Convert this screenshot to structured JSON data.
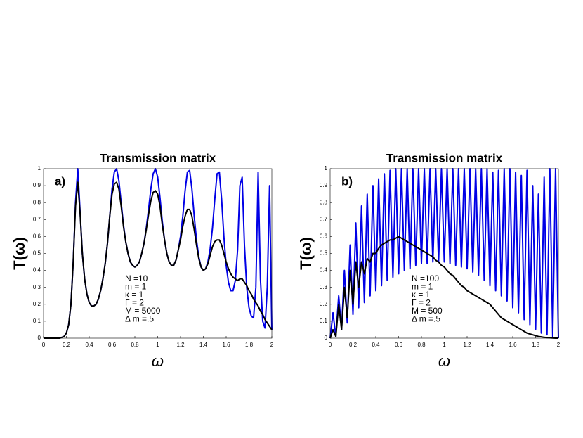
{
  "chart_data": [
    {
      "type": "line",
      "title": "Transmission matrix",
      "panel_label": "a)",
      "xlabel": "ω",
      "ylabel": "T(ω)",
      "annotations": [
        "N =10",
        "m = 1",
        "κ = 1",
        "Γ = 2",
        "M = 5000",
        "Δ m =.5"
      ],
      "x": [
        0,
        0.02,
        0.04,
        0.06,
        0.08,
        0.1,
        0.12,
        0.14,
        0.16,
        0.18,
        0.2,
        0.22,
        0.24,
        0.26,
        0.28,
        0.3,
        0.32,
        0.34,
        0.36,
        0.38,
        0.4,
        0.42,
        0.44,
        0.46,
        0.48,
        0.5,
        0.52,
        0.54,
        0.56,
        0.58,
        0.6,
        0.62,
        0.64,
        0.66,
        0.68,
        0.7,
        0.72,
        0.74,
        0.76,
        0.78,
        0.8,
        0.82,
        0.84,
        0.86,
        0.88,
        0.9,
        0.92,
        0.94,
        0.96,
        0.98,
        1,
        1.02,
        1.04,
        1.06,
        1.08,
        1.1,
        1.12,
        1.14,
        1.16,
        1.18,
        1.2,
        1.22,
        1.24,
        1.26,
        1.28,
        1.3,
        1.32,
        1.34,
        1.36,
        1.38,
        1.4,
        1.42,
        1.44,
        1.46,
        1.48,
        1.5,
        1.52,
        1.54,
        1.56,
        1.58,
        1.6,
        1.62,
        1.64,
        1.66,
        1.68,
        1.7,
        1.72,
        1.74,
        1.76,
        1.78,
        1.8,
        1.82,
        1.84,
        1.86,
        1.88,
        1.9,
        1.92,
        1.94,
        1.96,
        1.98,
        2
      ],
      "series": [
        {
          "color": "#0000e6",
          "values": [
            0,
            0,
            0,
            0,
            0,
            0,
            0,
            0,
            0.005,
            0.01,
            0.03,
            0.08,
            0.2,
            0.45,
            0.8,
            1,
            0.75,
            0.5,
            0.35,
            0.26,
            0.21,
            0.19,
            0.19,
            0.2,
            0.23,
            0.28,
            0.35,
            0.44,
            0.56,
            0.72,
            0.88,
            0.98,
            1,
            0.93,
            0.8,
            0.67,
            0.57,
            0.5,
            0.45,
            0.43,
            0.42,
            0.43,
            0.45,
            0.5,
            0.56,
            0.65,
            0.76,
            0.88,
            0.97,
            1,
            0.95,
            0.83,
            0.69,
            0.58,
            0.5,
            0.45,
            0.43,
            0.43,
            0.46,
            0.52,
            0.6,
            0.72,
            0.87,
            0.98,
            0.99,
            0.88,
            0.72,
            0.58,
            0.48,
            0.42,
            0.4,
            0.41,
            0.45,
            0.53,
            0.65,
            0.82,
            0.97,
            0.98,
            0.82,
            0.6,
            0.43,
            0.33,
            0.28,
            0.28,
            0.34,
            0.52,
            0.9,
            0.95,
            0.55,
            0.3,
            0.18,
            0.13,
            0.12,
            0.3,
            0.98,
            0.35,
            0.1,
            0.06,
            0.3,
            0.9,
            0.05
          ]
        },
        {
          "color": "#000000",
          "values": [
            0,
            0,
            0,
            0,
            0,
            0,
            0,
            0,
            0.005,
            0.01,
            0.03,
            0.08,
            0.2,
            0.45,
            0.78,
            0.92,
            0.74,
            0.5,
            0.35,
            0.26,
            0.21,
            0.19,
            0.19,
            0.2,
            0.23,
            0.28,
            0.35,
            0.44,
            0.56,
            0.72,
            0.85,
            0.91,
            0.92,
            0.88,
            0.78,
            0.66,
            0.57,
            0.5,
            0.45,
            0.43,
            0.42,
            0.43,
            0.45,
            0.5,
            0.56,
            0.64,
            0.73,
            0.81,
            0.86,
            0.87,
            0.85,
            0.78,
            0.67,
            0.58,
            0.5,
            0.45,
            0.43,
            0.43,
            0.46,
            0.52,
            0.58,
            0.66,
            0.72,
            0.76,
            0.76,
            0.72,
            0.64,
            0.55,
            0.47,
            0.42,
            0.4,
            0.41,
            0.44,
            0.49,
            0.54,
            0.57,
            0.58,
            0.58,
            0.55,
            0.5,
            0.45,
            0.41,
            0.38,
            0.36,
            0.35,
            0.34,
            0.35,
            0.35,
            0.33,
            0.31,
            0.28,
            0.26,
            0.23,
            0.21,
            0.19,
            0.16,
            0.14,
            0.11,
            0.09,
            0.07,
            0.05
          ]
        }
      ],
      "xlim": [
        0,
        2
      ],
      "ylim": [
        0,
        1
      ],
      "xticks": [
        0,
        0.2,
        0.4,
        0.6,
        0.8,
        1,
        1.2,
        1.4,
        1.6,
        1.8,
        2
      ],
      "yticks": [
        0,
        0.1,
        0.2,
        0.3,
        0.4,
        0.5,
        0.6,
        0.7,
        0.8,
        0.9,
        1
      ]
    },
    {
      "type": "line",
      "title": "Transmission matrix",
      "panel_label": "b)",
      "xlabel": "ω",
      "ylabel": "T(ω)",
      "annotations": [
        "N =100",
        "m = 1",
        "κ = 1",
        "Γ = 2",
        "M = 500",
        "Δ m =.5"
      ],
      "x": [
        0,
        0.025,
        0.05,
        0.075,
        0.1,
        0.125,
        0.15,
        0.175,
        0.2,
        0.225,
        0.25,
        0.275,
        0.3,
        0.325,
        0.35,
        0.375,
        0.4,
        0.425,
        0.45,
        0.475,
        0.5,
        0.525,
        0.55,
        0.575,
        0.6,
        0.625,
        0.65,
        0.675,
        0.7,
        0.725,
        0.75,
        0.775,
        0.8,
        0.825,
        0.85,
        0.875,
        0.9,
        0.925,
        0.95,
        0.975,
        1,
        1.025,
        1.05,
        1.075,
        1.1,
        1.125,
        1.15,
        1.175,
        1.2,
        1.225,
        1.25,
        1.275,
        1.3,
        1.325,
        1.35,
        1.375,
        1.4,
        1.425,
        1.45,
        1.475,
        1.5,
        1.525,
        1.55,
        1.575,
        1.6,
        1.625,
        1.65,
        1.675,
        1.7,
        1.725,
        1.75,
        1.775,
        1.8,
        1.825,
        1.85,
        1.875,
        1.9,
        1.925,
        1.95,
        1.975,
        2
      ],
      "series": [
        {
          "color": "#0000e6",
          "values": [
            0,
            0.15,
            0.01,
            0.25,
            0.05,
            0.4,
            0.09,
            0.55,
            0.14,
            0.68,
            0.18,
            0.78,
            0.21,
            0.85,
            0.25,
            0.9,
            0.28,
            0.94,
            0.31,
            0.97,
            0.34,
            0.99,
            0.36,
            1,
            0.38,
            1,
            0.4,
            1,
            0.41,
            1,
            0.43,
            1,
            0.44,
            1,
            0.44,
            1,
            0.45,
            1,
            0.45,
            1,
            0.45,
            1,
            0.44,
            1,
            0.43,
            1,
            0.42,
            1,
            0.41,
            1,
            0.39,
            1,
            0.37,
            1,
            0.34,
            1,
            0.31,
            0.98,
            0.28,
            0.99,
            0.25,
            1,
            0.22,
            1,
            0.18,
            0.98,
            0.15,
            0.96,
            0.11,
            0.99,
            0.08,
            0.9,
            0.05,
            0.85,
            0.03,
            0.95,
            0.02,
            1,
            0.01,
            1,
            0
          ]
        },
        {
          "color": "#000000",
          "values": [
            0,
            0.05,
            0.01,
            0.2,
            0.05,
            0.3,
            0.12,
            0.4,
            0.2,
            0.45,
            0.3,
            0.45,
            0.38,
            0.47,
            0.45,
            0.5,
            0.5,
            0.53,
            0.55,
            0.56,
            0.57,
            0.58,
            0.58,
            0.59,
            0.6,
            0.59,
            0.58,
            0.57,
            0.56,
            0.55,
            0.54,
            0.53,
            0.52,
            0.51,
            0.5,
            0.49,
            0.48,
            0.46,
            0.45,
            0.43,
            0.42,
            0.4,
            0.38,
            0.37,
            0.35,
            0.33,
            0.31,
            0.3,
            0.28,
            0.27,
            0.26,
            0.25,
            0.24,
            0.23,
            0.22,
            0.21,
            0.2,
            0.18,
            0.16,
            0.14,
            0.12,
            0.11,
            0.1,
            0.09,
            0.08,
            0.07,
            0.06,
            0.05,
            0.04,
            0.03,
            0.025,
            0.02,
            0.015,
            0.01,
            0.008,
            0.005,
            0.003,
            0.002,
            0.001,
            0,
            0
          ]
        }
      ],
      "xlim": [
        0,
        2
      ],
      "ylim": [
        0,
        1
      ],
      "xticks": [
        0,
        0.2,
        0.4,
        0.6,
        0.8,
        1,
        1.2,
        1.4,
        1.6,
        1.8,
        2
      ],
      "yticks": [
        0,
        0.1,
        0.2,
        0.3,
        0.4,
        0.5,
        0.6,
        0.7,
        0.8,
        0.9,
        1
      ]
    }
  ]
}
